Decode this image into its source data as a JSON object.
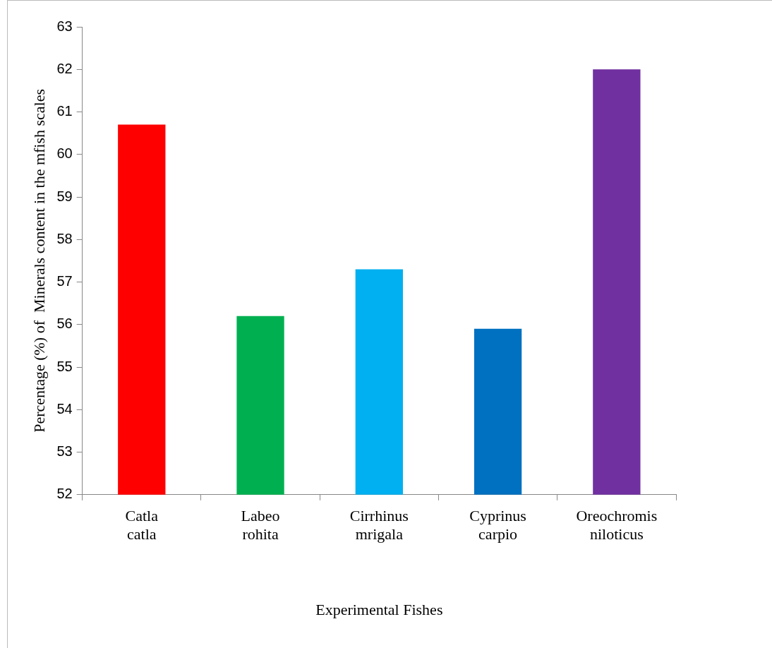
{
  "chart_data": {
    "type": "bar",
    "xlabel": "Experimental Fishes",
    "ylabel": "Percentage (%) of  Minerals content in the mfish scales",
    "categories": [
      "Catla catla",
      "Labeo rohita",
      "Cirrhinus mrigala",
      "Cyprinus carpio",
      "Oreochromis niloticus"
    ],
    "values": [
      60.7,
      56.2,
      57.3,
      55.9,
      62.0
    ],
    "colors": [
      "#ff0000",
      "#00b050",
      "#00b0f0",
      "#0070c0",
      "#7030a0"
    ],
    "ylim": [
      52,
      63
    ],
    "yticks": [
      52,
      53,
      54,
      55,
      56,
      57,
      58,
      59,
      60,
      61,
      62,
      63
    ],
    "grid": false,
    "legend": false
  }
}
